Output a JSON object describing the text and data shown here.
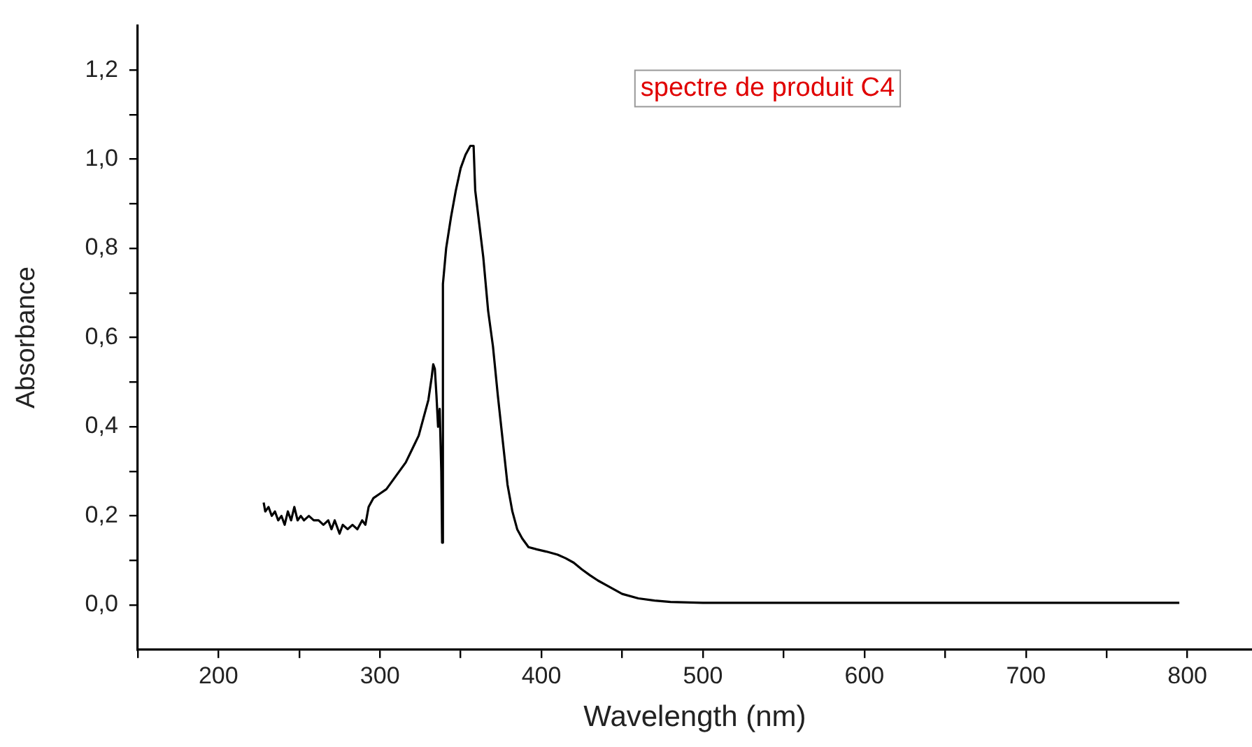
{
  "chart_data": {
    "type": "line",
    "xlabel": "Wavelength (nm)",
    "ylabel": "Absorbance",
    "annotations": [
      "spectre de produit C4"
    ],
    "xlim": [
      150,
      840
    ],
    "ylim": [
      -0.1,
      1.3
    ],
    "xticks": [
      {
        "value": 150,
        "label": null
      },
      200,
      {
        "value": 250,
        "label": null
      },
      300,
      {
        "value": 350,
        "label": null
      },
      400,
      {
        "value": 450,
        "label": null
      },
      500,
      {
        "value": 550,
        "label": null
      },
      600,
      {
        "value": 650,
        "label": null
      },
      700,
      {
        "value": 750,
        "label": null
      },
      800
    ],
    "yticks": [
      {
        "value": 0,
        "label": "0,0"
      },
      {
        "value": 0.1,
        "label": null
      },
      {
        "value": 0.2,
        "label": "0,2"
      },
      {
        "value": 0.3,
        "label": null
      },
      {
        "value": 0.4,
        "label": "0,4"
      },
      {
        "value": 0.5,
        "label": null
      },
      {
        "value": 0.6,
        "label": "0,6"
      },
      {
        "value": 0.7,
        "label": null
      },
      {
        "value": 0.8,
        "label": "0,8"
      },
      {
        "value": 0.9,
        "label": null
      },
      {
        "value": 1.0,
        "label": "1,0"
      },
      {
        "value": 1.1,
        "label": null
      },
      {
        "value": 1.2,
        "label": "1,2"
      }
    ],
    "grid": false,
    "marker": "none",
    "line_style": "solid",
    "series": [
      {
        "color": "#000000",
        "x": [
          228,
          229,
          231,
          233,
          235,
          237,
          239,
          241,
          243,
          245,
          247,
          249,
          251,
          253,
          256,
          259,
          262,
          265,
          268,
          270,
          272,
          275,
          277,
          280,
          283,
          286,
          289,
          291,
          293,
          296,
          300,
          304,
          308,
          312,
          316,
          320,
          324,
          327,
          330,
          332,
          333,
          334,
          335,
          336,
          337,
          338,
          338.5,
          339,
          341,
          344,
          347,
          350,
          353,
          356,
          358,
          359,
          361,
          364,
          367,
          370,
          373,
          376,
          379,
          382,
          385,
          388,
          392,
          397,
          403,
          410,
          415,
          420,
          425,
          430,
          435,
          440,
          450,
          460,
          470,
          480,
          500,
          550,
          600,
          650,
          700,
          750,
          795
        ],
        "values": [
          0.23,
          0.21,
          0.22,
          0.2,
          0.21,
          0.19,
          0.2,
          0.18,
          0.21,
          0.19,
          0.22,
          0.19,
          0.2,
          0.19,
          0.2,
          0.19,
          0.19,
          0.18,
          0.19,
          0.17,
          0.19,
          0.16,
          0.18,
          0.17,
          0.18,
          0.17,
          0.19,
          0.18,
          0.22,
          0.24,
          0.25,
          0.26,
          0.28,
          0.3,
          0.32,
          0.35,
          0.38,
          0.42,
          0.46,
          0.51,
          0.54,
          0.53,
          0.47,
          0.4,
          0.44,
          0.3,
          0.14,
          0.72,
          0.8,
          0.87,
          0.93,
          0.98,
          1.01,
          1.03,
          1.03,
          0.93,
          0.87,
          0.78,
          0.66,
          0.58,
          0.47,
          0.37,
          0.27,
          0.21,
          0.17,
          0.15,
          0.13,
          0.125,
          0.12,
          0.113,
          0.105,
          0.095,
          0.08,
          0.067,
          0.055,
          0.045,
          0.025,
          0.015,
          0.01,
          0.007,
          0.005,
          0.005,
          0.005,
          0.005,
          0.005,
          0.005,
          0.005
        ]
      }
    ]
  }
}
